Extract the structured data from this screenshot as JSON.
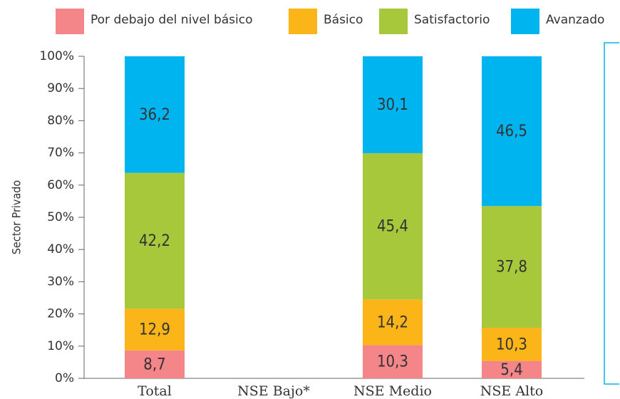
{
  "chart_data": {
    "type": "stacked_bar",
    "categories": [
      "Total",
      "NSE Bajo*",
      "NSE Medio",
      "NSE Alto"
    ],
    "ylabel": "Sector Privado",
    "series": [
      {
        "name": "Por debajo del nivel básico",
        "color": "#f4868a",
        "values": [
          8.7,
          null,
          10.3,
          5.4
        ],
        "value_labels": [
          "8,7",
          null,
          "10,3",
          "5,4"
        ]
      },
      {
        "name": "Básico",
        "color": "#fbb519",
        "values": [
          12.9,
          null,
          14.2,
          10.3
        ],
        "value_labels": [
          "12,9",
          null,
          "14,2",
          "10,3"
        ]
      },
      {
        "name": "Satisfactorio",
        "color": "#a8c83b",
        "values": [
          42.2,
          null,
          45.4,
          37.8
        ],
        "value_labels": [
          "42,2",
          null,
          "45,4",
          "37,8"
        ]
      },
      {
        "name": "Avanzado",
        "color": "#00b5ef",
        "values": [
          36.2,
          null,
          30.1,
          46.5
        ],
        "value_labels": [
          "36,2",
          null,
          "30,1",
          "46,5"
        ]
      }
    ],
    "ylim": [
      0,
      100
    ],
    "yticks": [
      {
        "value": 0,
        "label": "0%"
      },
      {
        "value": 10,
        "label": "10%"
      },
      {
        "value": 20,
        "label": "20%"
      },
      {
        "value": 30,
        "label": "30%"
      },
      {
        "value": 40,
        "label": "40%"
      },
      {
        "value": 50,
        "label": "50%"
      },
      {
        "value": 60,
        "label": "60%"
      },
      {
        "value": 70,
        "label": "70%"
      },
      {
        "value": 80,
        "label": "80%"
      },
      {
        "value": 90,
        "label": "90%"
      },
      {
        "value": 100,
        "label": "100%"
      }
    ],
    "legend": "top"
  }
}
